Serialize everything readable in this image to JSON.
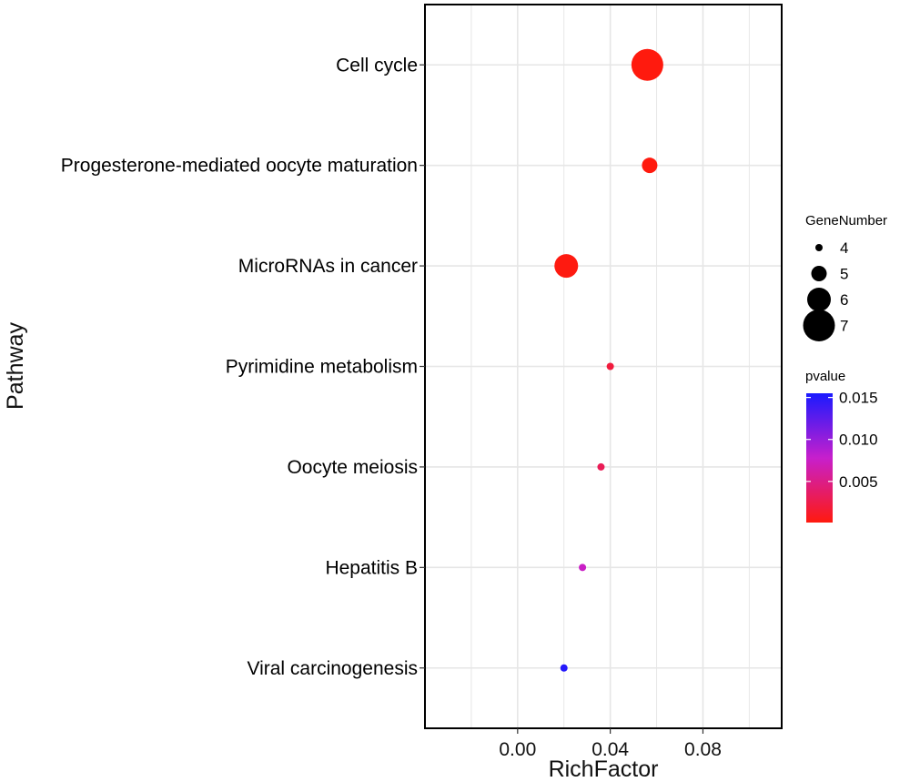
{
  "chart_data": {
    "type": "scatter",
    "xlabel": "RichFactor",
    "ylabel": "Pathway",
    "xlim": [
      -0.04,
      0.114
    ],
    "xticks": [
      0.0,
      0.04,
      0.08
    ],
    "xtick_labels": [
      "0.00",
      "0.04",
      "0.08"
    ],
    "grid": true,
    "categories": [
      "Viral carcinogenesis",
      "Hepatitis B",
      "Oocyte meiosis",
      "Pyrimidine metabolism",
      "MicroRNAs in cancer",
      "Progesterone-mediated oocyte maturation",
      "Cell cycle"
    ],
    "points": [
      {
        "pathway": "Cell cycle",
        "richfactor": 0.056,
        "gene_number": 7,
        "pvalue": 0.0001
      },
      {
        "pathway": "Progesterone-mediated oocyte maturation",
        "richfactor": 0.057,
        "gene_number": 5,
        "pvalue": 0.0001
      },
      {
        "pathway": "MicroRNAs in cancer",
        "richfactor": 0.021,
        "gene_number": 6,
        "pvalue": 0.0002
      },
      {
        "pathway": "Pyrimidine metabolism",
        "richfactor": 0.04,
        "gene_number": 4,
        "pvalue": 0.002
      },
      {
        "pathway": "Oocyte meiosis",
        "richfactor": 0.036,
        "gene_number": 4,
        "pvalue": 0.003
      },
      {
        "pathway": "Hepatitis B",
        "richfactor": 0.028,
        "gene_number": 4,
        "pvalue": 0.0075
      },
      {
        "pathway": "Viral carcinogenesis",
        "richfactor": 0.02,
        "gene_number": 4,
        "pvalue": 0.015
      }
    ],
    "size_legend": {
      "title": "GeneNumber",
      "values": [
        4,
        5,
        6,
        7
      ],
      "labels": [
        "4",
        "5",
        "6",
        "7"
      ]
    },
    "color_legend": {
      "title": "pvalue",
      "range": [
        0.0001,
        0.0155
      ],
      "ticks": [
        0.005,
        0.01,
        0.015
      ],
      "tick_labels": [
        "0.005",
        "0.010",
        "0.015"
      ],
      "low_color": "#ff1a0e",
      "mid_color": "#c71fcc",
      "high_color": "#1a1aff"
    },
    "legend_placement": "right"
  }
}
